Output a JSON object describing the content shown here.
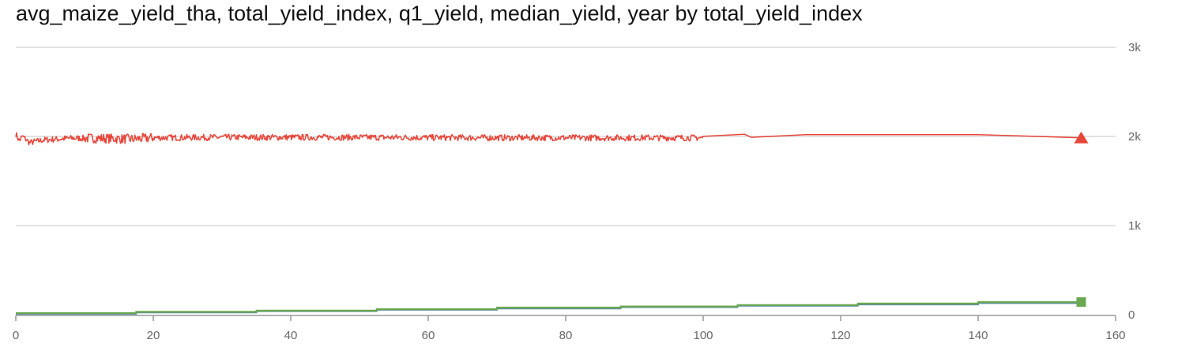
{
  "chart_data": {
    "type": "line",
    "title": "avg_maize_yield_tha, total_yield_index, q1_yield, median_yield, year by total_yield_index",
    "xlabel": "",
    "ylabel": "",
    "xlim": [
      0,
      160
    ],
    "ylim": [
      0,
      3000
    ],
    "x_ticks": [
      0,
      20,
      40,
      60,
      80,
      100,
      120,
      140,
      160
    ],
    "y_ticks": [
      0,
      1000,
      2000,
      3000
    ],
    "y_tick_labels": [
      "0",
      "1k",
      "2k",
      "3k"
    ],
    "y_axis_position": "right",
    "grid": true,
    "legend": "none",
    "series": [
      {
        "color": "#e8463a",
        "marker": "triangle",
        "noisy_until": 100,
        "points": [
          [
            0,
            2030
          ],
          [
            0.5,
            1950
          ],
          [
            1,
            2000
          ],
          [
            2,
            1930
          ],
          [
            4,
            1960
          ],
          [
            8,
            1980
          ],
          [
            12,
            1980
          ],
          [
            17,
            1970
          ],
          [
            20,
            1985
          ],
          [
            30,
            1990
          ],
          [
            50,
            1990
          ],
          [
            70,
            1985
          ],
          [
            90,
            1985
          ],
          [
            100,
            1985
          ],
          [
            106,
            2025
          ],
          [
            107,
            1990
          ],
          [
            115,
            2020
          ],
          [
            140,
            2020
          ],
          [
            155,
            1985
          ]
        ]
      },
      {
        "color": "#5b8fa8",
        "marker": "none",
        "points": [
          [
            0,
            10
          ],
          [
            17.5,
            10
          ],
          [
            17.5,
            25
          ],
          [
            35,
            25
          ],
          [
            35,
            40
          ],
          [
            52.5,
            40
          ],
          [
            52.5,
            55
          ],
          [
            70,
            55
          ],
          [
            70,
            70
          ],
          [
            88,
            70
          ],
          [
            88,
            85
          ],
          [
            105,
            85
          ],
          [
            105,
            100
          ],
          [
            122.5,
            100
          ],
          [
            122.5,
            115
          ],
          [
            140,
            115
          ],
          [
            140,
            130
          ],
          [
            155,
            130
          ]
        ]
      },
      {
        "color": "#6aa84f",
        "marker": "square",
        "points": [
          [
            0,
            18
          ],
          [
            17.5,
            18
          ],
          [
            17.5,
            32
          ],
          [
            35,
            32
          ],
          [
            35,
            45
          ],
          [
            52.5,
            45
          ],
          [
            52.5,
            62
          ],
          [
            70,
            62
          ],
          [
            70,
            80
          ],
          [
            88,
            80
          ],
          [
            88,
            92
          ],
          [
            105,
            92
          ],
          [
            105,
            108
          ],
          [
            122.5,
            108
          ],
          [
            122.5,
            125
          ],
          [
            140,
            125
          ],
          [
            140,
            142
          ],
          [
            155,
            142
          ]
        ]
      }
    ]
  }
}
